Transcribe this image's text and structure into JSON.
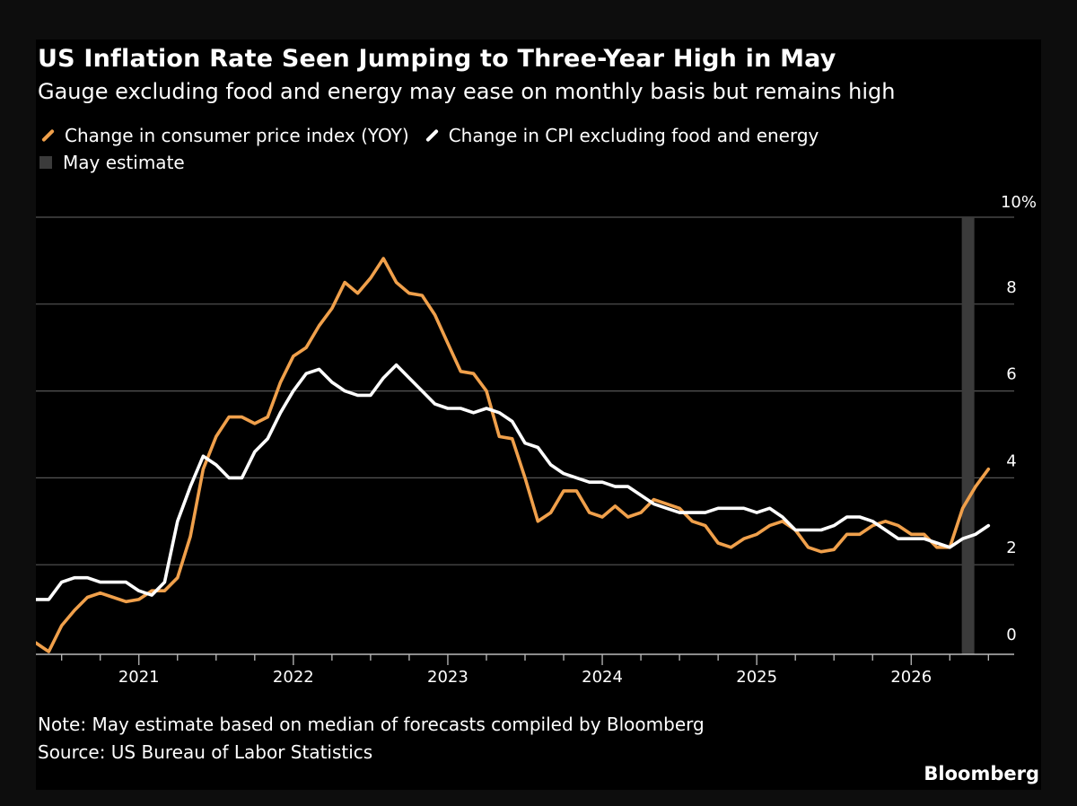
{
  "header": {
    "title": "US Inflation Rate Seen Jumping to Three-Year High in May",
    "subtitle": "Gauge excluding food and energy may ease on monthly basis but remains high"
  },
  "footer": {
    "note": "Note: May estimate based on median of forecasts compiled by Bloomberg",
    "source": "Source: US Bureau of Labor Statistics",
    "brand": "Bloomberg"
  },
  "colors": {
    "cpi": "#f0a04b",
    "core": "#ffffff",
    "estimate_band": "#3b3b3b",
    "grid": "#555555",
    "background": "#000000"
  },
  "chart_data": {
    "type": "line",
    "title": "US Inflation Rate Seen Jumping to Three-Year High in May",
    "subtitle": "Gauge excluding food and energy may ease on monthly basis but remains high",
    "x_axis": {
      "type": "date",
      "range": [
        "2020-05",
        "2026-09"
      ],
      "tick_labels": [
        "2021",
        "2022",
        "2023",
        "2024",
        "2025",
        "2026"
      ]
    },
    "y_axis": {
      "range": [
        0,
        10
      ],
      "ticks": [
        0,
        2,
        4,
        6,
        8,
        10
      ],
      "tick_labels": [
        "0",
        "2",
        "4",
        "6",
        "8",
        "10%"
      ],
      "position": "right"
    },
    "grid": true,
    "legend_position": "top-left",
    "shaded_region": {
      "label": "May estimate",
      "start": "2026-05",
      "end": "2026-05"
    },
    "series": [
      {
        "name": "Change in consumer price index (YOY)",
        "color": "#f0a04b",
        "start": "2020-05",
        "values": [
          0.2,
          0.0,
          0.6,
          0.95,
          1.25,
          1.35,
          1.25,
          1.15,
          1.2,
          1.4,
          1.4,
          1.7,
          2.65,
          4.2,
          4.95,
          5.4,
          5.4,
          5.25,
          5.4,
          6.2,
          6.8,
          7.0,
          7.5,
          7.9,
          8.5,
          8.25,
          8.6,
          9.05,
          8.5,
          8.25,
          8.2,
          7.75,
          7.1,
          6.45,
          6.4,
          6.0,
          4.95,
          4.9,
          4.0,
          3.0,
          3.2,
          3.7,
          3.7,
          3.2,
          3.1,
          3.35,
          3.1,
          3.2,
          3.5,
          3.4,
          3.3,
          3.0,
          2.9,
          2.5,
          2.4,
          2.6,
          2.7,
          2.9,
          3.0,
          2.8,
          2.4,
          2.3,
          2.35,
          2.7,
          2.7,
          2.9,
          3.0,
          2.9,
          2.7,
          2.7,
          2.4,
          2.4,
          3.3,
          3.8,
          4.2
        ]
      },
      {
        "name": "Change in CPI excluding food and energy",
        "color": "#ffffff",
        "start": "2020-05",
        "values": [
          1.2,
          1.2,
          1.6,
          1.7,
          1.7,
          1.6,
          1.6,
          1.6,
          1.4,
          1.3,
          1.6,
          3.0,
          3.8,
          4.5,
          4.3,
          4.0,
          4.0,
          4.6,
          4.9,
          5.5,
          6.0,
          6.4,
          6.5,
          6.2,
          6.0,
          5.9,
          5.9,
          6.3,
          6.6,
          6.3,
          6.0,
          5.7,
          5.6,
          5.6,
          5.5,
          5.6,
          5.5,
          5.3,
          4.8,
          4.7,
          4.3,
          4.1,
          4.0,
          3.9,
          3.9,
          3.8,
          3.8,
          3.6,
          3.4,
          3.3,
          3.2,
          3.2,
          3.2,
          3.3,
          3.3,
          3.3,
          3.2,
          3.3,
          3.1,
          2.8,
          2.8,
          2.8,
          2.9,
          3.1,
          3.1,
          3.0,
          2.8,
          2.6,
          2.6,
          2.6,
          2.5,
          2.4,
          2.6,
          2.7,
          2.9
        ]
      }
    ]
  }
}
